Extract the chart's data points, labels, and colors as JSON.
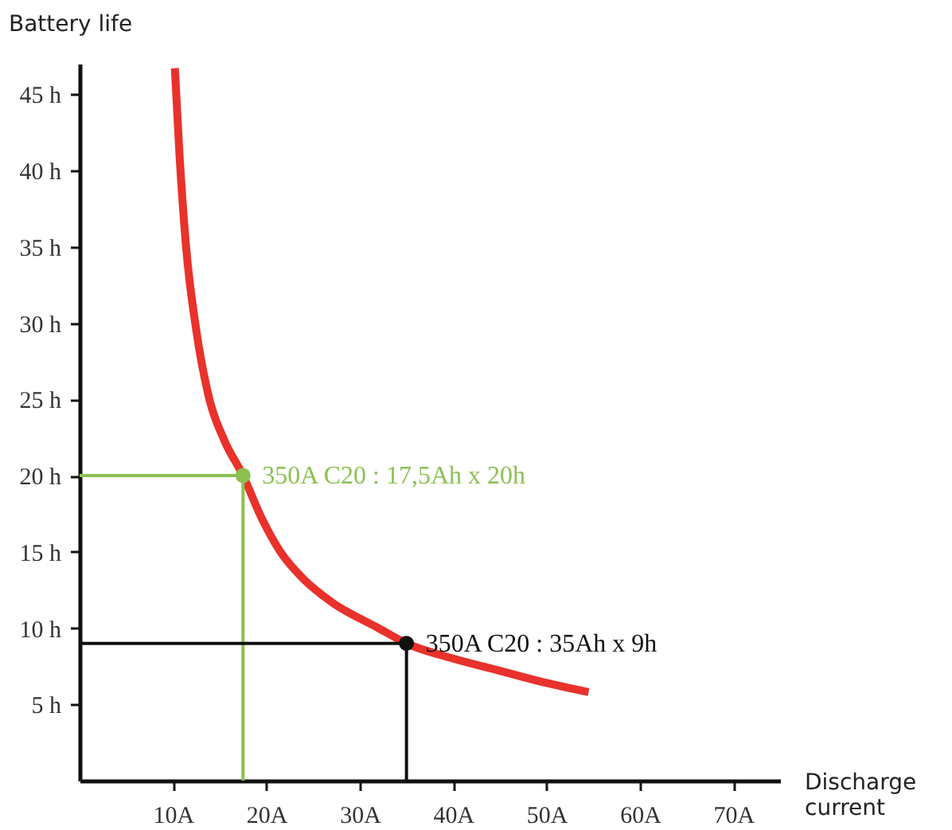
{
  "chart_data": {
    "type": "line",
    "xlabel": "Discharge current",
    "ylabel": "Battery life",
    "xlim": [
      0,
      75
    ],
    "ylim": [
      0,
      47
    ],
    "xticks": [
      {
        "value": 10,
        "label": "10A"
      },
      {
        "value": 20,
        "label": "20A"
      },
      {
        "value": 30,
        "label": "30A"
      },
      {
        "value": 40,
        "label": "40A"
      },
      {
        "value": 50,
        "label": "50A"
      },
      {
        "value": 60,
        "label": "60A"
      },
      {
        "value": 70,
        "label": "70A"
      }
    ],
    "yticks": [
      {
        "value": 5,
        "label": "5 h"
      },
      {
        "value": 10,
        "label": "10 h"
      },
      {
        "value": 15,
        "label": "15 h"
      },
      {
        "value": 20,
        "label": "20 h"
      },
      {
        "value": 25,
        "label": "25 h"
      },
      {
        "value": 30,
        "label": "30 h"
      },
      {
        "value": 35,
        "label": "35 h"
      },
      {
        "value": 40,
        "label": "40 h"
      },
      {
        "value": 45,
        "label": "45 h"
      }
    ],
    "grid": false,
    "line_style": "solid",
    "series": [
      {
        "color": "#e8322b",
        "x": [
          10.2,
          10.7,
          11.4,
          12.5,
          13.9,
          15.5,
          17.5,
          19.5,
          21.5,
          24,
          27,
          32,
          35,
          40,
          45,
          50,
          54.5
        ],
        "values": [
          46.7,
          41,
          35,
          29.5,
          25,
          22.3,
          20,
          17.2,
          15,
          13.2,
          11.7,
          10,
          9,
          8,
          7.2,
          6.4,
          5.8
        ]
      },
      {
        "color": "#8cc152",
        "x": [
          0,
          17.5,
          17.5
        ],
        "values": [
          20,
          20,
          0
        ]
      },
      {
        "color": "#111111",
        "x": [
          0,
          35,
          35
        ],
        "values": [
          9,
          9,
          0
        ]
      },
      {
        "type": "scatter",
        "color": "#8cc152",
        "x": [
          17.5
        ],
        "values": [
          20
        ]
      },
      {
        "type": "scatter",
        "color": "#111111",
        "x": [
          35
        ],
        "values": [
          9
        ]
      }
    ],
    "annotations": [
      {
        "text": "350A C20 : 17,5Ah x 20h",
        "x": 17.5,
        "y": 20
      },
      {
        "text": "350A C20 : 35Ah x 9h",
        "x": 35,
        "y": 9
      }
    ]
  }
}
